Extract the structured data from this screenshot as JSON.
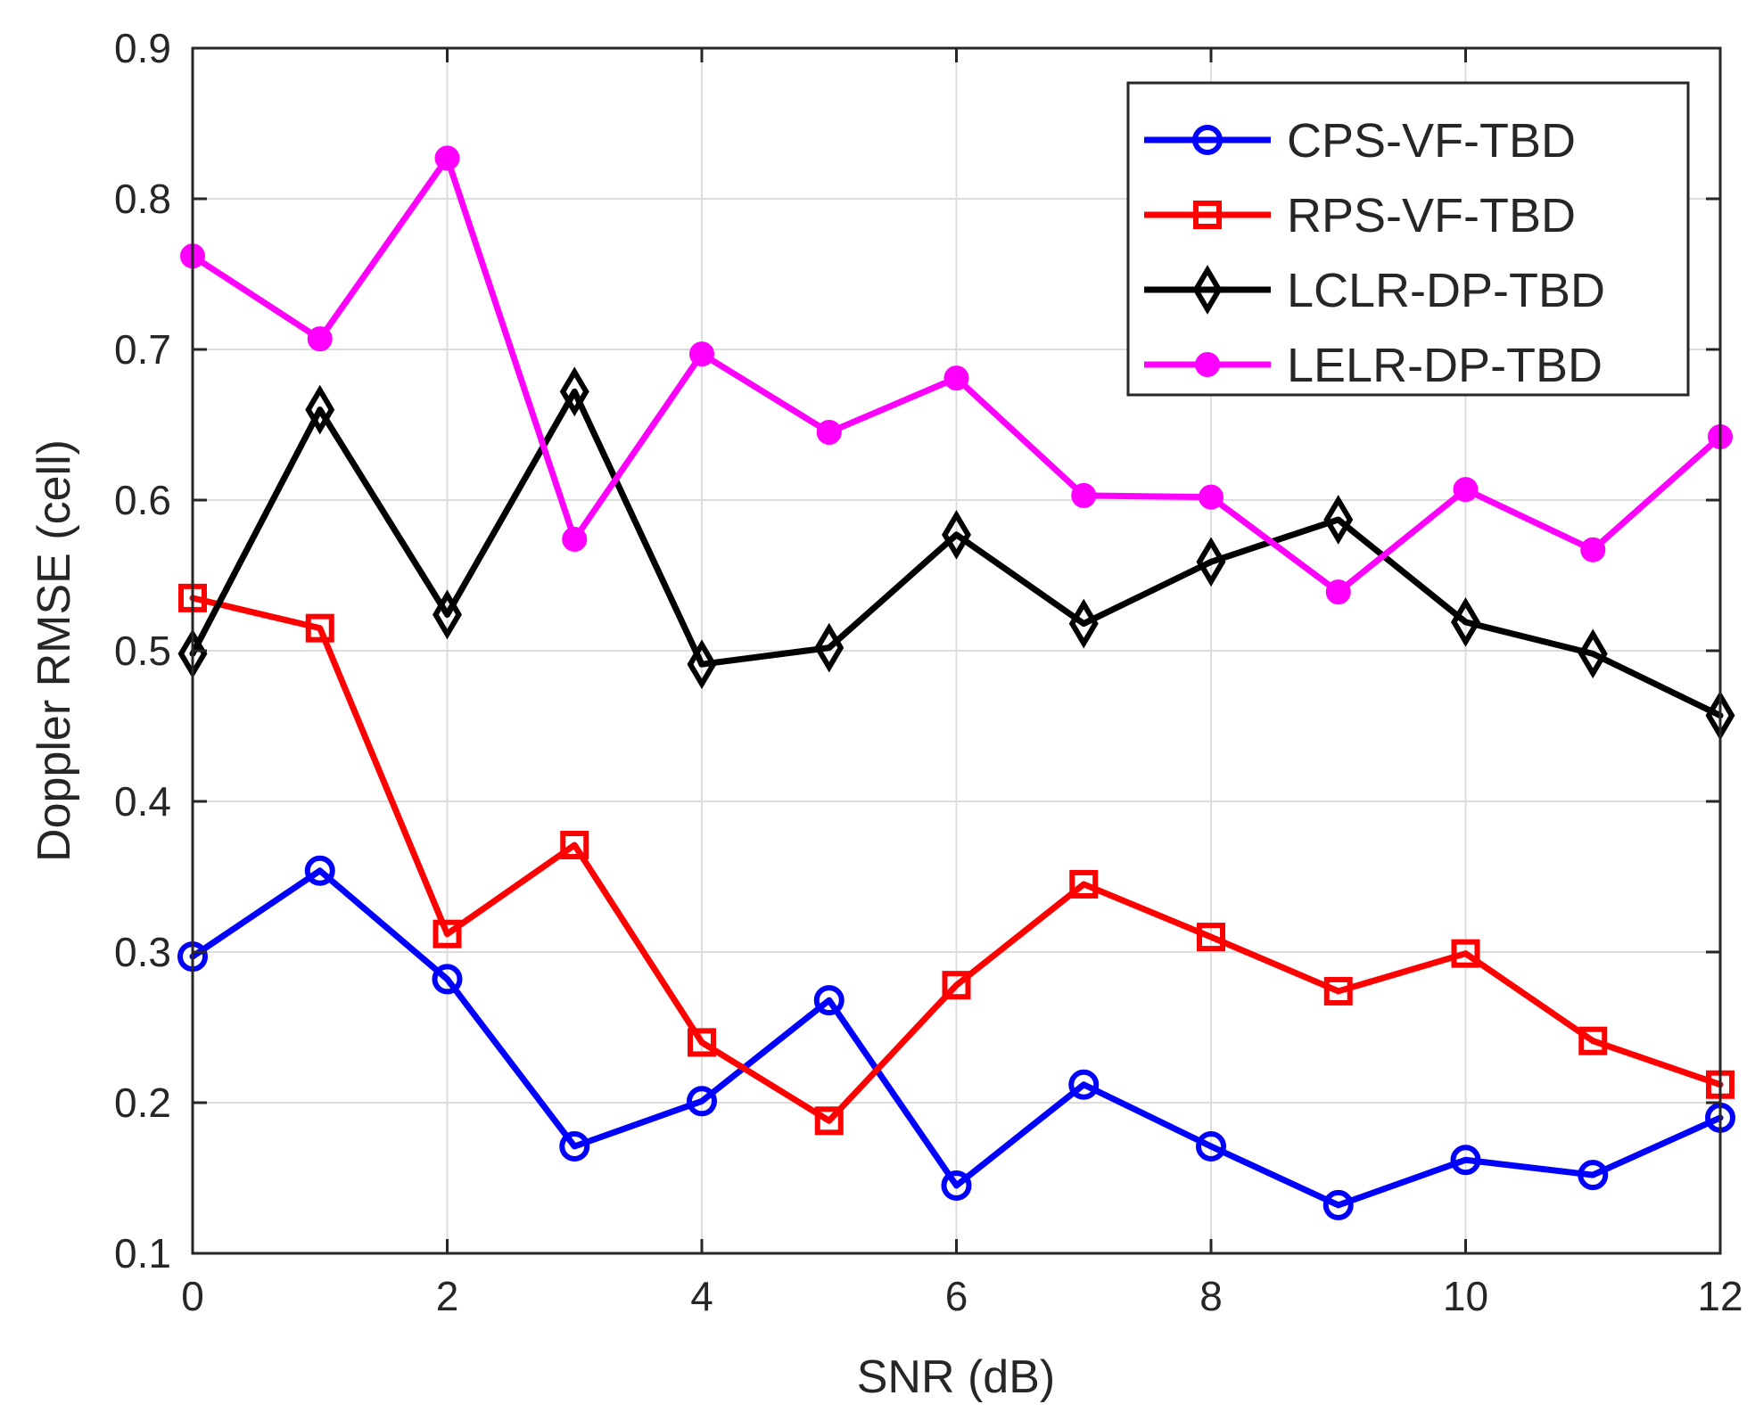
{
  "chart_data": {
    "type": "line",
    "xlabel": "SNR (dB)",
    "ylabel": "Doppler RMSE (cell)",
    "xlim": [
      0,
      12
    ],
    "ylim": [
      0.1,
      0.9
    ],
    "xticks": [
      0,
      2,
      4,
      6,
      8,
      10,
      12
    ],
    "yticks": [
      0.1,
      0.2,
      0.3,
      0.4,
      0.5,
      0.6,
      0.7,
      0.8,
      0.9
    ],
    "xtick_labels": [
      "0",
      "2",
      "4",
      "6",
      "8",
      "10",
      "12"
    ],
    "ytick_labels": [
      "0.1",
      "0.2",
      "0.3",
      "0.4",
      "0.5",
      "0.6",
      "0.7",
      "0.8",
      "0.9"
    ],
    "grid": true,
    "legend_position": "top-right",
    "x": [
      0,
      1,
      2,
      3,
      4,
      5,
      6,
      7,
      8,
      9,
      10,
      11,
      12
    ],
    "series": [
      {
        "name": "CPS-VF-TBD",
        "color": "#0000ff",
        "marker": "circle-open",
        "values": [
          0.297,
          0.354,
          0.282,
          0.171,
          0.201,
          0.268,
          0.145,
          0.212,
          0.171,
          0.132,
          0.162,
          0.152,
          0.19
        ]
      },
      {
        "name": "RPS-VF-TBD",
        "color": "#ff0000",
        "marker": "square-open",
        "values": [
          0.535,
          0.515,
          0.312,
          0.371,
          0.24,
          0.188,
          0.278,
          0.345,
          0.31,
          0.274,
          0.299,
          0.241,
          0.212
        ]
      },
      {
        "name": "LCLR-DP-TBD",
        "color": "#000000",
        "marker": "diamond-open",
        "values": [
          0.498,
          0.66,
          0.524,
          0.672,
          0.491,
          0.502,
          0.577,
          0.518,
          0.559,
          0.587,
          0.519,
          0.498,
          0.457
        ]
      },
      {
        "name": "LELR-DP-TBD",
        "color": "#ff00ff",
        "marker": "circle-filled",
        "values": [
          0.762,
          0.707,
          0.827,
          0.574,
          0.697,
          0.645,
          0.681,
          0.603,
          0.602,
          0.539,
          0.607,
          0.567,
          0.642
        ]
      }
    ]
  }
}
